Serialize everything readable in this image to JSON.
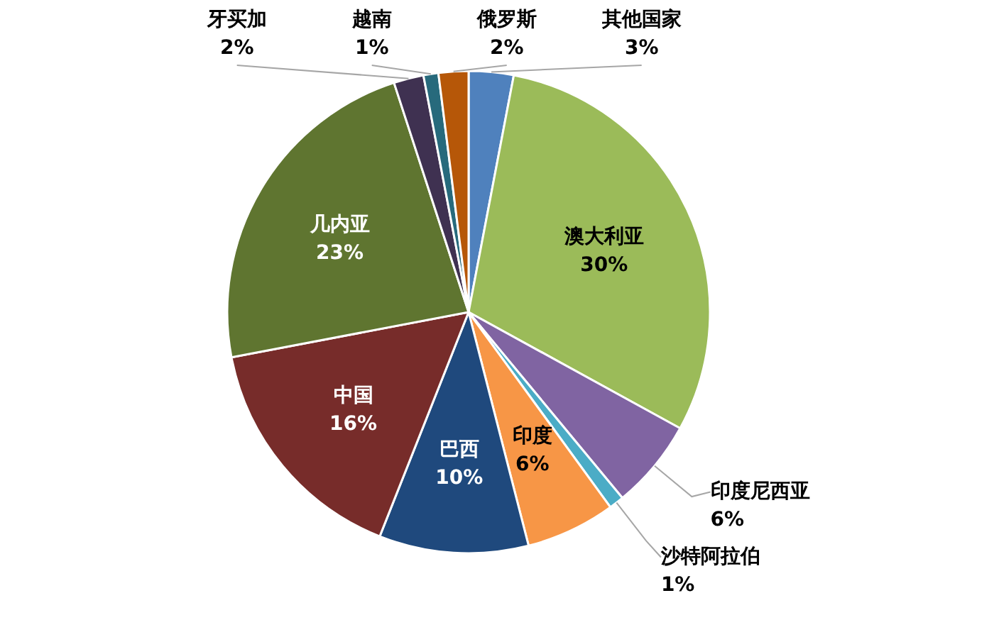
{
  "chart_data": {
    "type": "pie",
    "categories": [
      "其他国家",
      "澳大利亚",
      "印度尼西亚",
      "沙特阿拉伯",
      "印度",
      "巴西",
      "中国",
      "几内亚",
      "牙买加",
      "越南",
      "俄罗斯"
    ],
    "values": [
      3,
      30,
      6,
      1,
      6,
      10,
      16,
      23,
      2,
      1,
      2
    ],
    "value_labels": [
      "3%",
      "30%",
      "6%",
      "1%",
      "6%",
      "10%",
      "16%",
      "23%",
      "2%",
      "1%",
      "2%"
    ],
    "colors": [
      "#4f81bd",
      "#9bbb59",
      "#8064a2",
      "#4bacc6",
      "#f79646",
      "#1f497d",
      "#772c2a",
      "#5f7530",
      "#3f3151",
      "#276a7c",
      "#b65708"
    ]
  }
}
